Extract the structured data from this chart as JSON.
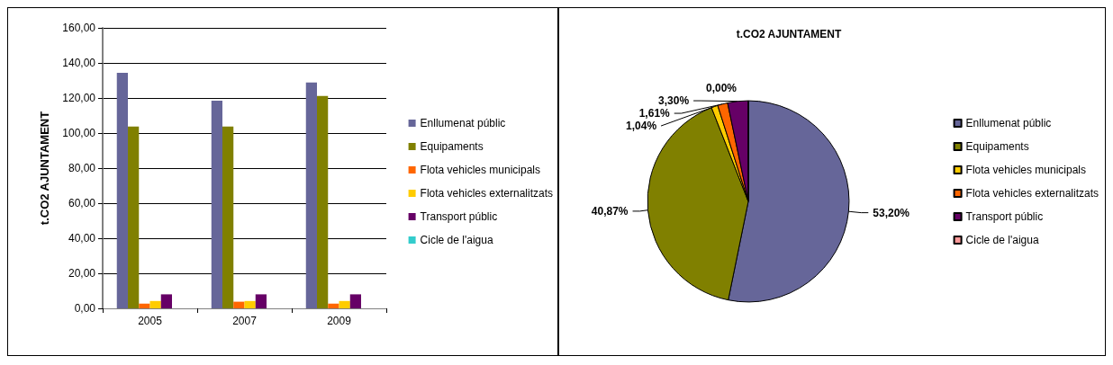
{
  "chart_data": [
    {
      "type": "bar",
      "ylabel": "t.CO2 AJUNTAMENT",
      "categories": [
        "2005",
        "2007",
        "2009"
      ],
      "series": [
        {
          "name": "Enllumenat públic",
          "color": "#666699",
          "values": [
            134.3,
            118.4,
            128.8
          ]
        },
        {
          "name": "Equipaments",
          "color": "#808000",
          "values": [
            103.7,
            103.7,
            121.2
          ]
        },
        {
          "name": "Flota vehicles municipals",
          "color": "#ff6600",
          "values": [
            2.7,
            3.8,
            2.7
          ]
        },
        {
          "name": "Flota vehicles externalitzats",
          "color": "#ffcc00",
          "values": [
            4.2,
            4.2,
            4.2
          ]
        },
        {
          "name": "Transport públic",
          "color": "#660066",
          "values": [
            8.0,
            8.0,
            8.0
          ]
        },
        {
          "name": "Cicle de l'aigua",
          "color": "#33cccc",
          "values": [
            0,
            0,
            0
          ]
        }
      ],
      "ylim": [
        0,
        160
      ],
      "yticks": [
        {
          "value": 0,
          "label": "0,00"
        },
        {
          "value": 20,
          "label": "20,00"
        },
        {
          "value": 40,
          "label": "40,00"
        },
        {
          "value": 60,
          "label": "60,00"
        },
        {
          "value": 80,
          "label": "80,00"
        },
        {
          "value": 100,
          "label": "100,00"
        },
        {
          "value": 120,
          "label": "120,00"
        },
        {
          "value": 140,
          "label": "140,00"
        },
        {
          "value": 160,
          "label": "160,00"
        }
      ],
      "grid": "y",
      "legend": "right"
    },
    {
      "type": "pie",
      "title": "t.CO2 AJUNTAMENT",
      "categories": [
        "Enllumenat públic",
        "Equipaments",
        "Flota vehicles municipals",
        "Flota vehicles externalitzats",
        "Transport públic",
        "Cicle de l'aigua"
      ],
      "values": [
        53.2,
        40.87,
        1.04,
        1.61,
        3.3,
        0.0
      ],
      "value_labels": [
        "53,20%",
        "40,87%",
        "1,04%",
        "1,61%",
        "3,30%",
        "0,00%"
      ],
      "colors": [
        "#666699",
        "#808000",
        "#ffcc00",
        "#ff6600",
        "#660066",
        "#ff9999"
      ],
      "legend": "right"
    }
  ]
}
